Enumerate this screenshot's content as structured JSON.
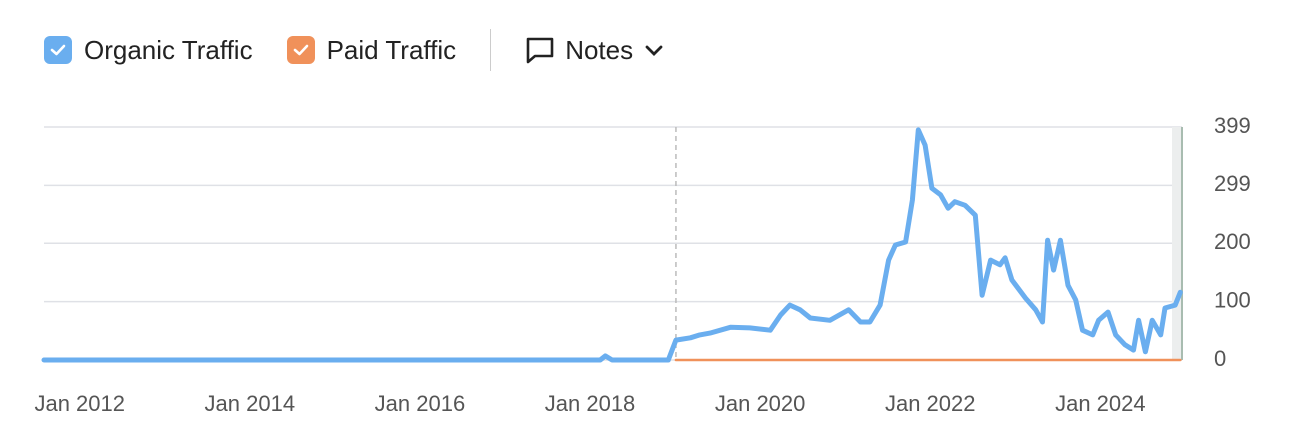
{
  "chart_data": {
    "type": "line",
    "legend": {
      "notes": "Notes"
    },
    "series": [
      {
        "name": "Organic Traffic",
        "color": "#6aaeef",
        "x": [
          2011.58,
          2018.12,
          2018.18,
          2018.26,
          2018.92,
          2019.01,
          2019.18,
          2019.29,
          2019.41,
          2019.65,
          2019.88,
          2020.12,
          2020.24,
          2020.35,
          2020.47,
          2020.59,
          2020.82,
          2021.04,
          2021.18,
          2021.29,
          2021.41,
          2021.51,
          2021.59,
          2021.71,
          2021.79,
          2021.86,
          2021.94,
          2022.02,
          2022.12,
          2022.21,
          2022.29,
          2022.41,
          2022.53,
          2022.61,
          2022.71,
          2022.82,
          2022.88,
          2022.96,
          2023.12,
          2023.24,
          2023.32,
          2023.38,
          2023.45,
          2023.53,
          2023.62,
          2023.71,
          2023.79,
          2023.91,
          2023.98,
          2024.09,
          2024.18,
          2024.29,
          2024.39,
          2024.45,
          2024.53,
          2024.61,
          2024.71,
          2024.76,
          2024.88,
          2024.94
        ],
        "values": [
          0,
          0,
          7,
          0,
          0,
          34,
          38,
          43,
          46,
          56,
          55,
          51,
          77,
          94,
          86,
          72,
          68,
          86,
          65,
          65,
          94,
          171,
          197,
          202,
          274,
          394,
          368,
          294,
          283,
          260,
          271,
          265,
          248,
          111,
          171,
          163,
          175,
          137,
          106,
          86,
          65,
          205,
          154,
          205,
          128,
          103,
          51,
          43,
          68,
          82,
          43,
          26,
          17,
          68,
          14,
          68,
          43,
          89,
          94,
          116
        ]
      },
      {
        "name": "Paid Traffic",
        "color": "#f0915a",
        "x": [
          2019.01,
          2024.94
        ],
        "values": [
          0,
          0
        ]
      }
    ],
    "vlines": [
      2019.01
    ],
    "xlim": [
      2011.58,
      2024.96
    ],
    "xticks": [
      {
        "value": 2012,
        "label": "Jan 2012"
      },
      {
        "value": 2014,
        "label": "Jan 2014"
      },
      {
        "value": 2016,
        "label": "Jan 2016"
      },
      {
        "value": 2018,
        "label": "Jan 2018"
      },
      {
        "value": 2020,
        "label": "Jan 2020"
      },
      {
        "value": 2022,
        "label": "Jan 2022"
      },
      {
        "value": 2024,
        "label": "Jan 2024"
      }
    ],
    "ylim": [
      0,
      399
    ],
    "yticks": [
      0,
      100,
      200,
      299,
      399
    ],
    "grid": true
  }
}
